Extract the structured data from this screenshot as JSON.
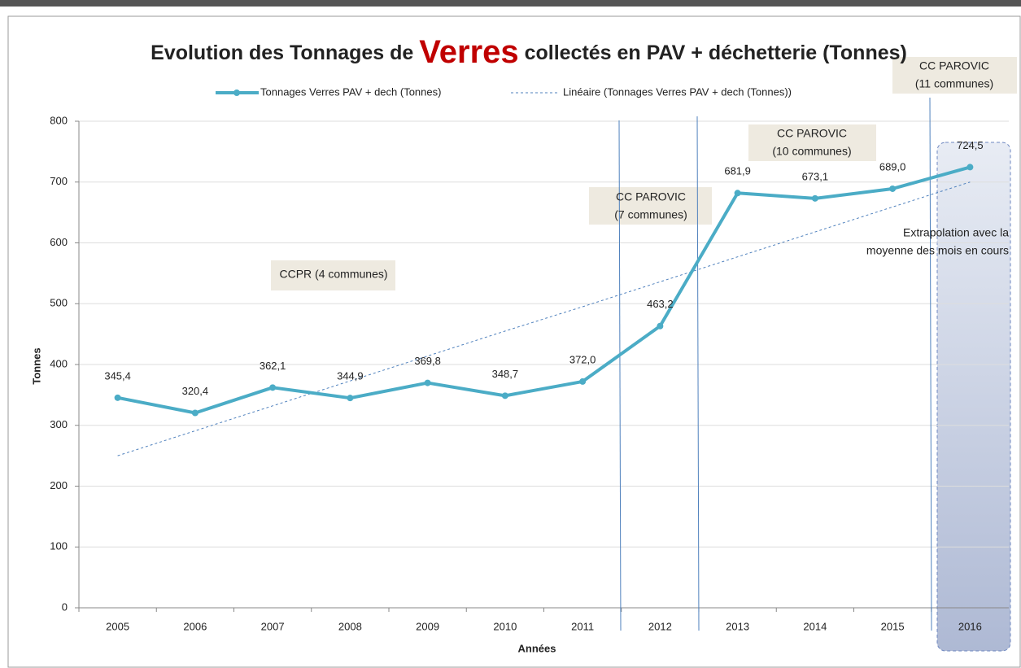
{
  "chart_data": {
    "type": "line",
    "title": [
      "Evolution des ",
      "Tonnages",
      " de ",
      "Verres",
      " collectés en PAV + déchetterie (Tonnes)"
    ],
    "categories": [
      "2005",
      "2006",
      "2007",
      "2008",
      "2009",
      "2010",
      "2011",
      "2012",
      "2013",
      "2014",
      "2015",
      "2016"
    ],
    "series": [
      {
        "name": "Tonnages Verres PAV + dech (Tonnes)",
        "color": "#4bacc6",
        "values": [
          345.4,
          320.4,
          362.1,
          344.9,
          369.8,
          348.7,
          372.0,
          463.2,
          681.9,
          673.1,
          689.0,
          724.5
        ],
        "value_labels": [
          "345,4",
          "320,4",
          "362,1",
          "344,9",
          "369,8",
          "348,7",
          "372,0",
          "463,2",
          "681,9",
          "673,1",
          "689,0",
          "724,5"
        ]
      },
      {
        "name": "Linéaire (Tonnages Verres PAV + dech (Tonnes))",
        "color": "#4f81bd",
        "dashed": true,
        "values": [
          250,
          291,
          332,
          373,
          414,
          455,
          495,
          536,
          577,
          618,
          659,
          700
        ]
      }
    ],
    "ylim": [
      0,
      800
    ],
    "yticks": [
      0,
      100,
      200,
      300,
      400,
      500,
      600,
      700,
      800
    ],
    "xlabel": "Années",
    "ylabel": "Tonnes",
    "grid": true,
    "annotations": [
      [
        "CCPR (4 communes)"
      ],
      [
        "CC PAROVIC",
        "(7 communes)"
      ],
      [
        "CC PAROVIC",
        "(10 communes)"
      ],
      [
        "CC PAROVIC",
        "(11 communes)"
      ],
      [
        "Extrapolation avec la",
        "moyenne des mois en cours"
      ]
    ]
  }
}
